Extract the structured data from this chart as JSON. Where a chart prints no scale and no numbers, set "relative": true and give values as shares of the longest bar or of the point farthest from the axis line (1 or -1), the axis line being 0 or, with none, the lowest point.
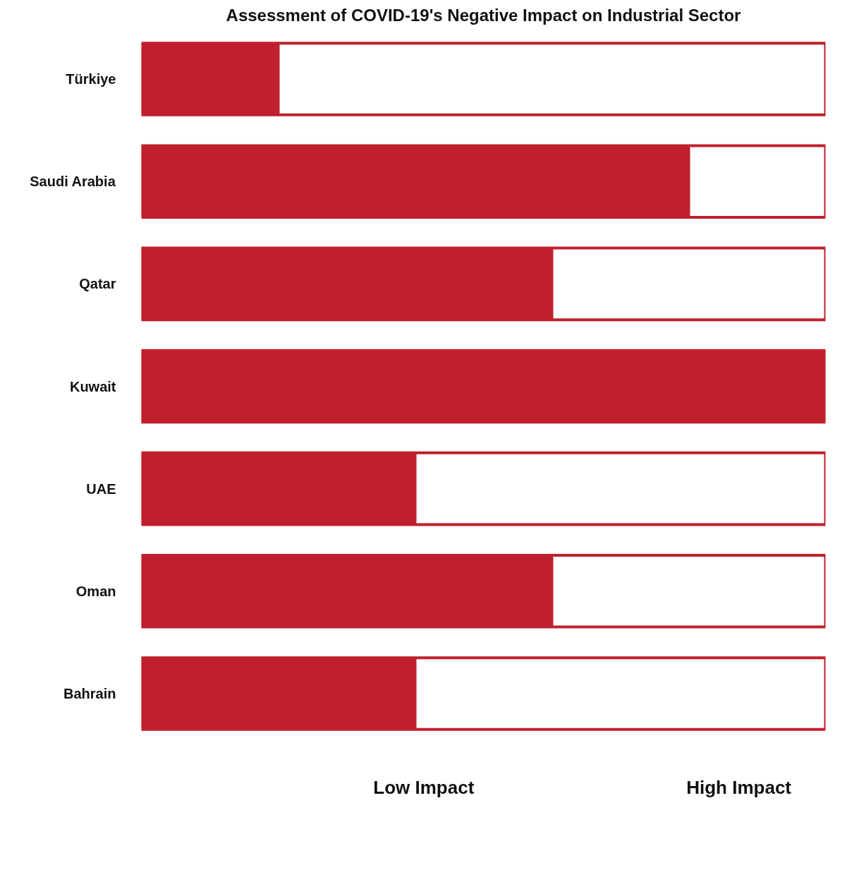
{
  "chart_data": {
    "type": "bar",
    "orientation": "horizontal",
    "stacked": true,
    "relative": true,
    "title": "Assessment of COVID-19's Negative Impact on Industrial Sector",
    "categories": [
      "Türkiye",
      "Saudi Arabia",
      "Qatar",
      "Kuwait",
      "UAE",
      "Oman",
      "Bahrain"
    ],
    "series": [
      {
        "color": "#c0202e",
        "values": [
          0.2,
          0.8,
          0.6,
          1,
          0.4,
          0.6,
          0.4
        ]
      },
      {
        "color": "#ffffff",
        "values": [
          0.8,
          0.2,
          0.4,
          0,
          0.6,
          0.4,
          0.6
        ]
      }
    ],
    "annotations": [
      "Low Impact",
      "High Impact"
    ]
  }
}
